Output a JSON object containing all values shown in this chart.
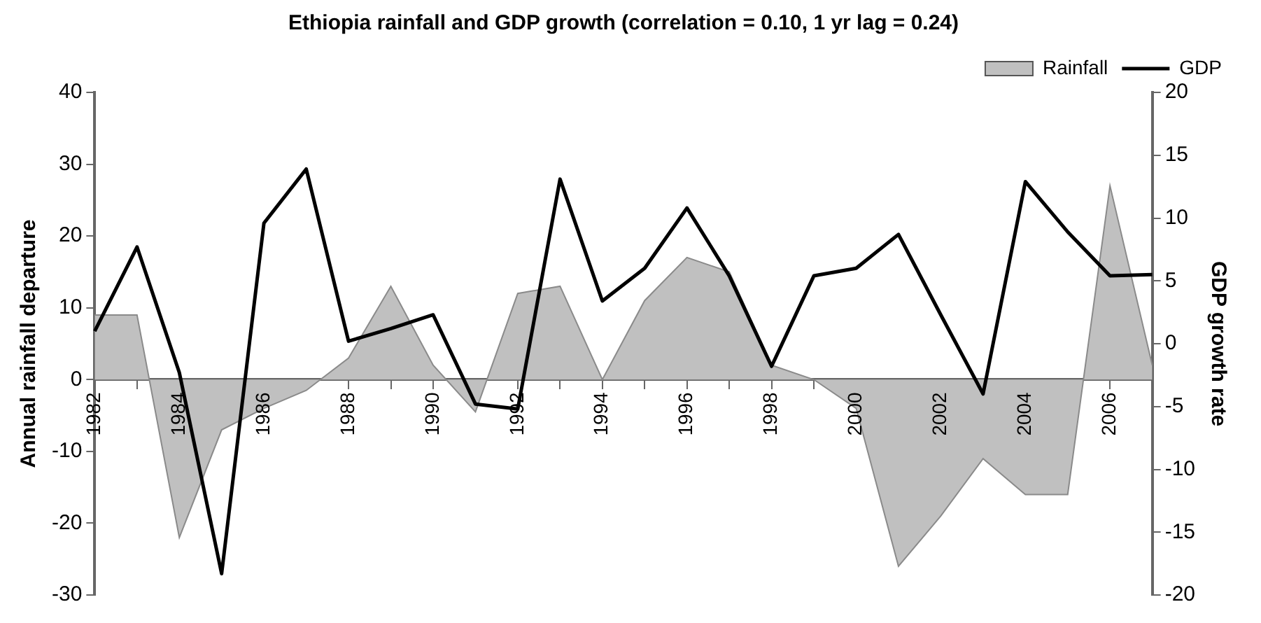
{
  "chart_data": {
    "type": "area",
    "title": "Ethiopia rainfall and GDP growth (correlation = 0.10, 1 yr lag = 0.24)",
    "ylabel": "Annual rainfall departure",
    "y2label": "GDP growth rate",
    "categories": [
      "1982",
      null,
      "1984",
      null,
      "1986",
      null,
      "1988",
      null,
      "1990",
      null,
      "1992",
      null,
      "1994",
      null,
      "1996",
      null,
      "1998",
      null,
      "2000",
      null,
      "2002",
      null,
      "2004",
      null,
      "2006",
      null
    ],
    "series": [
      {
        "name": "Rainfall",
        "type": "area",
        "color": "#c0c0c0",
        "values": [
          9,
          9,
          -22,
          -7,
          -4,
          -1.5,
          3,
          13,
          2,
          -4.5,
          12,
          13,
          0,
          11,
          17,
          15,
          2,
          0,
          -4,
          -26,
          -19,
          -11,
          -16,
          -16,
          27,
          2
        ]
      },
      {
        "name": "GDP",
        "type": "line",
        "axis": "y2",
        "color": "#000000",
        "values": [
          1,
          7.7,
          -2.3,
          -18.3,
          9.6,
          13.9,
          0.2,
          1.2,
          2.3,
          -4.8,
          -5.2,
          13.1,
          3.4,
          6,
          10.8,
          5.4,
          -1.8,
          5.4,
          6,
          8.7,
          2.3,
          -4,
          12.9,
          8.9,
          5.4,
          5.5
        ]
      }
    ],
    "ylim": [
      -30,
      40
    ],
    "yticks": [
      -30,
      -20,
      -10,
      0,
      10,
      20,
      30,
      40
    ],
    "y2lim": [
      -20,
      20
    ],
    "y2ticks": [
      -20,
      -15,
      -10,
      -5,
      0,
      5,
      10,
      15,
      20
    ],
    "grid": false,
    "legend": "top right"
  }
}
